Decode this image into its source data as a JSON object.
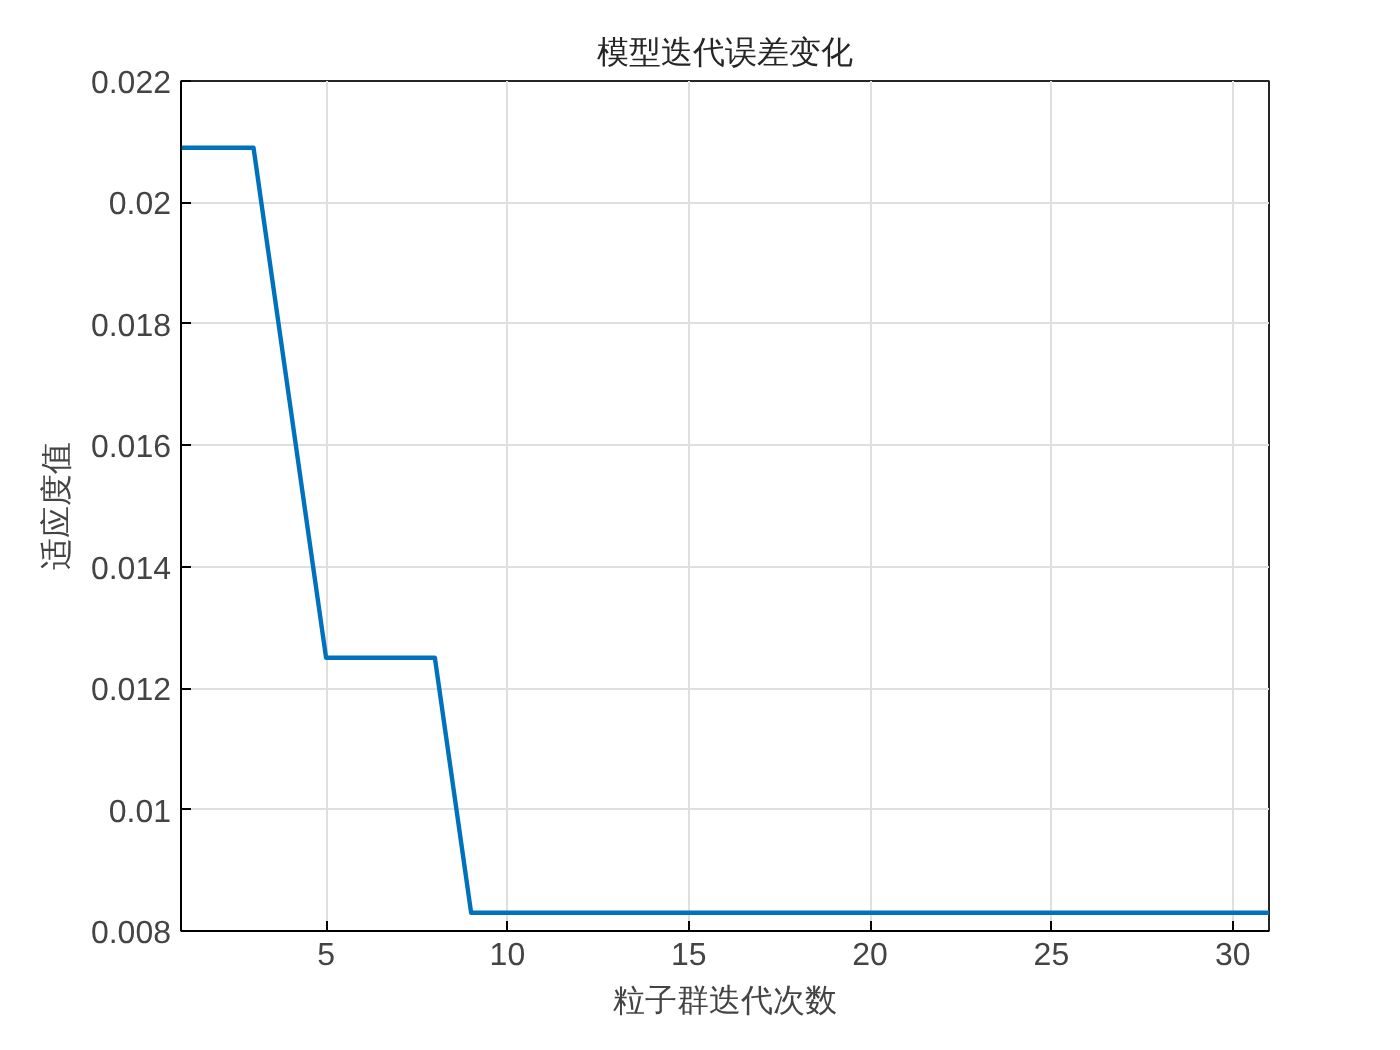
{
  "chart_data": {
    "type": "line",
    "title": "模型迭代误差变化",
    "xlabel": "粒子群迭代次数",
    "ylabel": "适应度值",
    "x": [
      1,
      2,
      3,
      4,
      5,
      6,
      7,
      8,
      9,
      10,
      11,
      12,
      13,
      14,
      15,
      16,
      17,
      18,
      19,
      20,
      21,
      22,
      23,
      24,
      25,
      26,
      27,
      28,
      29,
      30,
      31
    ],
    "series": [
      {
        "color": "#0072bd",
        "values": [
          0.0209,
          0.0209,
          0.0209,
          0.0167,
          0.0125,
          0.0125,
          0.0125,
          0.0125,
          0.0083,
          0.0083,
          0.0083,
          0.0083,
          0.0083,
          0.0083,
          0.0083,
          0.0083,
          0.0083,
          0.0083,
          0.0083,
          0.0083,
          0.0083,
          0.0083,
          0.0083,
          0.0083,
          0.0083,
          0.0083,
          0.0083,
          0.0083,
          0.0083,
          0.0083,
          0.0083
        ]
      }
    ],
    "xlim": [
      1,
      31
    ],
    "ylim": [
      0.008,
      0.022
    ],
    "xticks": [
      5,
      10,
      15,
      20,
      25,
      30
    ],
    "yticks": [
      0.008,
      0.01,
      0.012,
      0.014,
      0.016,
      0.018,
      0.02,
      0.022
    ],
    "grid": true,
    "marker": "none",
    "line_style": "solid"
  }
}
